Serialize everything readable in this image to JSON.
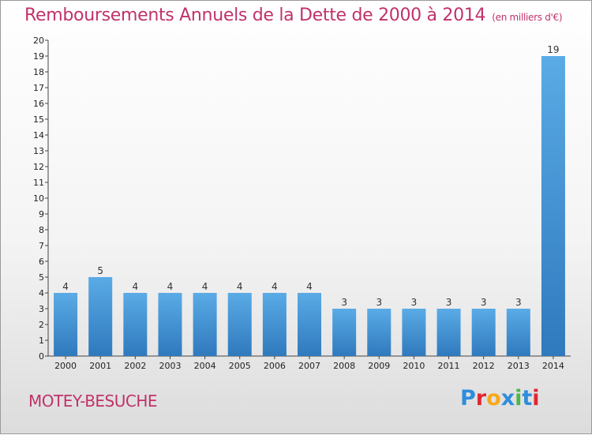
{
  "title": "Remboursements Annuels de la Dette de 2000 à 2014",
  "unit": "(en milliers d'€)",
  "commune": "MOTEY-BESUCHE",
  "logo": {
    "text": "Proxiti",
    "colors": [
      "#2f8ddb",
      "#e2262f",
      "#f7a81b",
      "#2f8ddb",
      "#49b848",
      "#2f8ddb",
      "#e2262f"
    ]
  },
  "chart_data": {
    "type": "bar",
    "title": "Remboursements Annuels de la Dette de 2000 à 2014",
    "xlabel": "",
    "ylabel": "(en milliers d'€)",
    "categories": [
      "2000",
      "2001",
      "2002",
      "2003",
      "2004",
      "2005",
      "2006",
      "2007",
      "2008",
      "2009",
      "2010",
      "2011",
      "2012",
      "2013",
      "2014"
    ],
    "values": [
      4,
      5,
      4,
      4,
      4,
      4,
      4,
      4,
      3,
      3,
      3,
      3,
      3,
      3,
      19
    ],
    "ylim": [
      0,
      20
    ],
    "yticks": [
      0,
      1,
      2,
      3,
      4,
      5,
      6,
      7,
      8,
      9,
      10,
      11,
      12,
      13,
      14,
      15,
      16,
      17,
      18,
      19,
      20
    ],
    "grid": false,
    "bar_color_top": "#5aabe6",
    "bar_color_bottom": "#2f79bd"
  }
}
